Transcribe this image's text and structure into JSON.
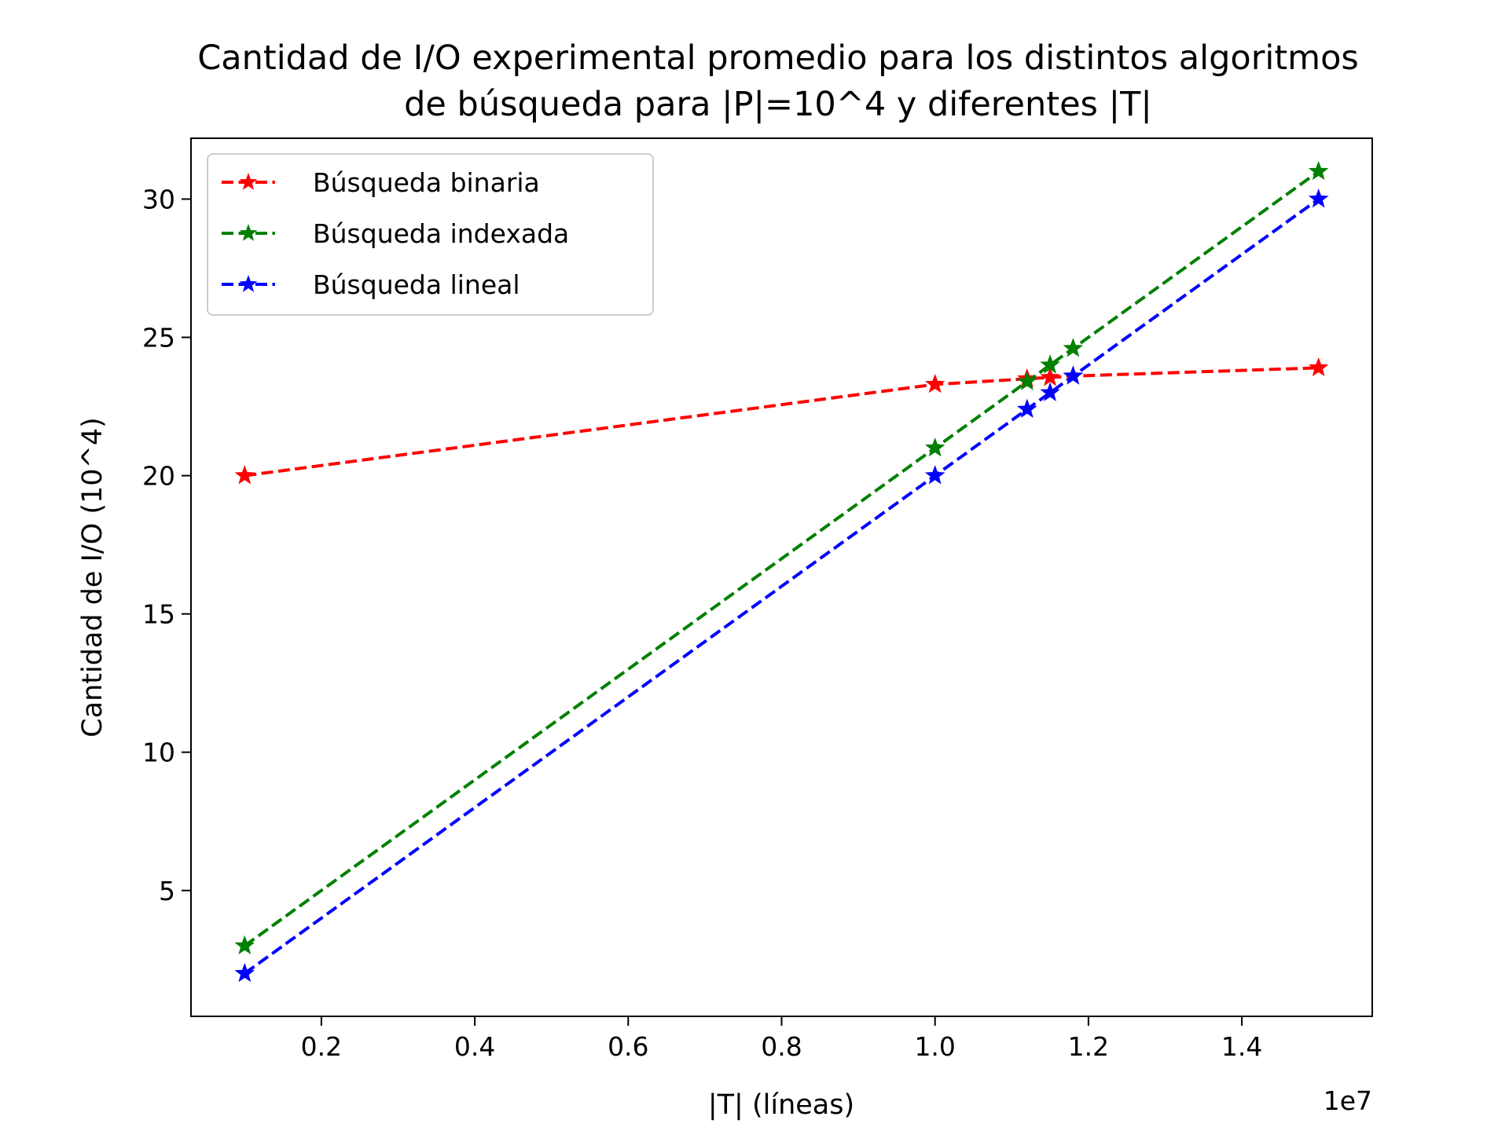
{
  "chart_data": {
    "type": "line",
    "title_lines": [
      "Cantidad de I/O experimental promedio para los distintos algoritmos",
      "de búsqueda para |P|=10^4 y diferentes |T|"
    ],
    "xlabel": "|T| (líneas)",
    "ylabel": "Cantidad de I/O (10^4)",
    "x_offset_label": "1e7",
    "xlim": [
      0.03,
      1.57
    ],
    "ylim": [
      0.45,
      32.2
    ],
    "x_ticks": [
      0.2,
      0.4,
      0.6,
      0.8,
      1.0,
      1.2,
      1.4
    ],
    "x_tick_labels": [
      "0.2",
      "0.4",
      "0.6",
      "0.8",
      "1.0",
      "1.2",
      "1.4"
    ],
    "y_ticks": [
      5,
      10,
      15,
      20,
      25,
      30
    ],
    "y_tick_labels": [
      "5",
      "10",
      "15",
      "20",
      "25",
      "30"
    ],
    "grid": false,
    "legend_position": "top-left",
    "line_style": "dashed",
    "marker": "star",
    "series": [
      {
        "name": "Búsqueda binaria",
        "color": "#ff0000",
        "x": [
          0.1,
          1.0,
          1.12,
          1.15,
          1.18,
          1.5
        ],
        "y": [
          20.0,
          23.3,
          23.5,
          23.55,
          23.6,
          23.9
        ]
      },
      {
        "name": "Búsqueda indexada",
        "color": "#008000",
        "x": [
          0.1,
          1.0,
          1.12,
          1.15,
          1.18,
          1.5
        ],
        "y": [
          3.0,
          21.0,
          23.4,
          24.0,
          24.6,
          31.0
        ]
      },
      {
        "name": "Búsqueda lineal",
        "color": "#0000ff",
        "x": [
          0.1,
          1.0,
          1.12,
          1.15,
          1.18,
          1.5
        ],
        "y": [
          2.0,
          20.0,
          22.4,
          23.0,
          23.6,
          30.0
        ]
      }
    ]
  }
}
